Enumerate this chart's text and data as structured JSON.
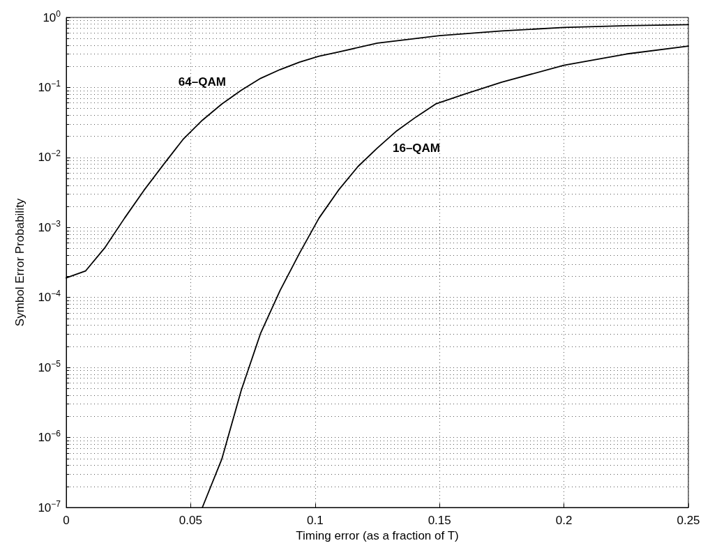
{
  "chart_data": {
    "type": "line",
    "xlabel": "Timing error (as a fraction of T)",
    "ylabel": "Symbol Error Probability",
    "series": [
      {
        "name": "64–QAM",
        "color": "#000000",
        "x": [
          0,
          0.0078125,
          0.015625,
          0.0234375,
          0.03125,
          0.0390625,
          0.046875,
          0.0546875,
          0.0625,
          0.0703125,
          0.078125,
          0.0859375,
          0.09375,
          0.1015625,
          0.109375,
          0.125,
          0.15,
          0.175,
          0.2,
          0.225,
          0.25
        ],
        "values": [
          0.00019,
          0.00024,
          0.00052,
          0.00136,
          0.0034,
          0.0079,
          0.018,
          0.034,
          0.058,
          0.091,
          0.135,
          0.18,
          0.23,
          0.28,
          0.32,
          0.43,
          0.55,
          0.64,
          0.72,
          0.76,
          0.79
        ]
      },
      {
        "name": "16–QAM",
        "color": "#000000",
        "x": [
          0.0546875,
          0.0625,
          0.0703125,
          0.078125,
          0.0859375,
          0.09375,
          0.1015625,
          0.109375,
          0.1171875,
          0.125,
          0.1328125,
          0.140625,
          0.1484375,
          0.16,
          0.175,
          0.2,
          0.225,
          0.25
        ],
        "values": [
          1e-07,
          4.9e-07,
          4.7e-06,
          3.1e-05,
          0.000126,
          0.00043,
          0.00136,
          0.0034,
          0.0074,
          0.0136,
          0.024,
          0.038,
          0.058,
          0.08,
          0.119,
          0.207,
          0.3,
          0.39
        ]
      }
    ],
    "xlim": [
      0,
      0.25
    ],
    "xticks": [
      0,
      0.05,
      0.1,
      0.15,
      0.2,
      0.25
    ],
    "ylim": [
      1e-07,
      1
    ],
    "log": "y",
    "yticks": [
      {
        "value": 1e-07,
        "label": "10$^{−7}$"
      },
      {
        "value": 1e-06,
        "label": "10$^{−6}$"
      },
      {
        "value": 1e-05,
        "label": "10$^{−5}$"
      },
      {
        "value": 0.0001,
        "label": "10$^{−4}$"
      },
      {
        "value": 0.001,
        "label": "10$^{−3}$"
      },
      {
        "value": 0.01,
        "label": "10$^{−2}$"
      },
      {
        "value": 0.1,
        "label": "10$^{−1}$"
      },
      {
        "value": 1,
        "label": "10$^{0}$"
      }
    ],
    "grid": true,
    "legend": false,
    "marker": "none",
    "line_style": "solid"
  }
}
